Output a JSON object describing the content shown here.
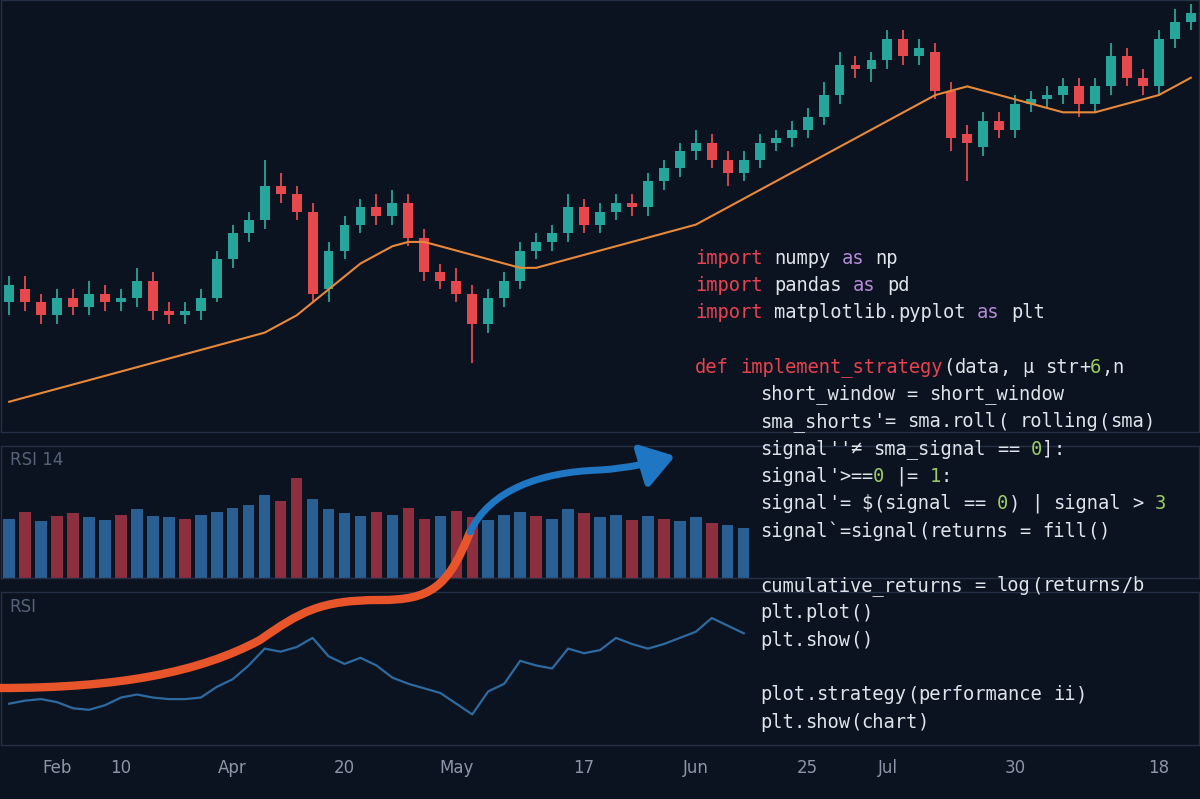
{
  "chart_data": [
    {
      "type": "candlestick",
      "categories": [
        null,
        null,
        null,
        null,
        null,
        null,
        null,
        null,
        null,
        null,
        null,
        null,
        null,
        null,
        null,
        null,
        null,
        null,
        null,
        null,
        null,
        null,
        null,
        null,
        null,
        null,
        null,
        null,
        null,
        null,
        null,
        null,
        null,
        null,
        null,
        null,
        null,
        null,
        null,
        null,
        null,
        null,
        null,
        null,
        null,
        null,
        null,
        null,
        null,
        null,
        null,
        null,
        null,
        null,
        null,
        null,
        null,
        null,
        null,
        null,
        null,
        null,
        null,
        null,
        null,
        null,
        null,
        null,
        null,
        null,
        null,
        null,
        null,
        null,
        null
      ],
      "open": [
        30,
        33,
        30,
        27,
        31,
        29,
        32,
        30,
        31,
        35,
        28,
        27,
        28,
        31,
        40,
        46,
        49,
        57,
        55,
        51,
        33,
        42,
        48,
        52,
        50,
        53,
        45,
        37,
        35,
        32,
        25,
        31,
        35,
        42,
        44,
        46,
        52,
        48,
        51,
        53,
        52,
        58,
        61,
        65,
        67,
        63,
        60,
        63,
        67,
        68,
        70,
        73,
        78,
        85,
        84,
        86,
        91,
        87,
        88,
        79,
        69,
        66,
        72,
        70,
        76,
        77,
        78,
        80,
        76,
        80,
        87,
        82,
        80,
        91,
        95
      ],
      "high": [
        36,
        36,
        32,
        33,
        33,
        35,
        34,
        33,
        38,
        37,
        30,
        30,
        33,
        42,
        48,
        51,
        63,
        60,
        57,
        53,
        44,
        50,
        54,
        55,
        56,
        55,
        47,
        39,
        38,
        34,
        33,
        37,
        44,
        46,
        48,
        55,
        54,
        53,
        55,
        55,
        60,
        63,
        67,
        70,
        69,
        65,
        65,
        69,
        70,
        72,
        75,
        81,
        88,
        87,
        88,
        93,
        93,
        91,
        90,
        81,
        71,
        74,
        74,
        78,
        79,
        80,
        82,
        82,
        82,
        90,
        89,
        84,
        93,
        98,
        99
      ],
      "low": [
        27,
        28,
        25,
        25,
        27,
        27,
        28,
        28,
        29,
        26,
        25,
        25,
        26,
        30,
        38,
        44,
        47,
        53,
        49,
        30,
        30,
        40,
        46,
        48,
        48,
        43,
        35,
        33,
        30,
        16,
        23,
        29,
        33,
        40,
        42,
        44,
        46,
        46,
        49,
        50,
        50,
        56,
        59,
        63,
        61,
        57,
        58,
        61,
        65,
        66,
        68,
        71,
        76,
        82,
        81,
        84,
        85,
        85,
        77,
        65,
        58,
        64,
        68,
        68,
        74,
        75,
        76,
        73,
        74,
        78,
        80,
        78,
        78,
        89,
        93
      ],
      "close": [
        34,
        30,
        27,
        31,
        29,
        32,
        30,
        31,
        35,
        28,
        27,
        28,
        31,
        40,
        46,
        49,
        57,
        55,
        51,
        32,
        42,
        48,
        52,
        50,
        53,
        45,
        37,
        35,
        32,
        25,
        31,
        35,
        42,
        44,
        46,
        52,
        48,
        51,
        53,
        52,
        58,
        61,
        65,
        67,
        63,
        60,
        63,
        67,
        68,
        70,
        73,
        78,
        85,
        84,
        86,
        91,
        87,
        89,
        79,
        68,
        67,
        72,
        70,
        76,
        77,
        78,
        80,
        76,
        80,
        87,
        82,
        80,
        91,
        95,
        97
      ],
      "colors": [
        "#26a69a",
        "#e5484d",
        "#e5484d",
        "#26a69a",
        "#e5484d",
        "#26a69a",
        "#e5484d",
        "#26a69a",
        "#26a69a",
        "#e5484d",
        "#e5484d",
        "#26a69a",
        "#26a69a",
        "#26a69a",
        "#26a69a",
        "#26a69a",
        "#26a69a",
        "#e5484d",
        "#e5484d",
        "#e5484d",
        "#26a69a",
        "#26a69a",
        "#26a69a",
        "#e5484d",
        "#26a69a",
        "#e5484d",
        "#e5484d",
        "#e5484d",
        "#e5484d",
        "#e5484d",
        "#26a69a",
        "#26a69a",
        "#26a69a",
        "#26a69a",
        "#26a69a",
        "#26a69a",
        "#e5484d",
        "#26a69a",
        "#26a69a",
        "#e5484d",
        "#26a69a",
        "#26a69a",
        "#26a69a",
        "#26a69a",
        "#e5484d",
        "#e5484d",
        "#26a69a",
        "#26a69a",
        "#26a69a",
        "#26a69a",
        "#26a69a",
        "#26a69a",
        "#26a69a",
        "#e5484d",
        "#26a69a",
        "#26a69a",
        "#e5484d",
        "#26a69a",
        "#e5484d",
        "#e5484d",
        "#e5484d",
        "#26a69a",
        "#e5484d",
        "#26a69a",
        "#26a69a",
        "#26a69a",
        "#26a69a",
        "#e5484d",
        "#26a69a",
        "#26a69a",
        "#e5484d",
        "#e5484d",
        "#26a69a",
        "#26a69a",
        "#26a69a"
      ],
      "series": [
        {
          "type": "line",
          "color": "#e8893a",
          "values": [
            7,
            8,
            9,
            10,
            11,
            12,
            13,
            14,
            15,
            16,
            17,
            18,
            19,
            20,
            21,
            22,
            23,
            25,
            27,
            30,
            33,
            36,
            39,
            41,
            43,
            44,
            44,
            43,
            42,
            41,
            40,
            39,
            38,
            38,
            39,
            40,
            41,
            42,
            43,
            44,
            45,
            46,
            47,
            48,
            50,
            52,
            54,
            56,
            58,
            60,
            62,
            64,
            66,
            68,
            70,
            72,
            74,
            76,
            78,
            79,
            80,
            79,
            78,
            77,
            76,
            75,
            74,
            74,
            74,
            75,
            76,
            77,
            78,
            80,
            82
          ]
        }
      ],
      "ylim": [
        0,
        100
      ],
      "tick_labels": false,
      "annotations": [
        [
          "import numpy as np",
          "import pandas as pd",
          "import matplotlib.pyplot as plt"
        ],
        [
          "def implement_strategy(data, μ str+6,n",
          "short_window = short_window",
          "sma_shorts'= sma.roll( rolling(sma)",
          "signal''≠ sma_signal == 0]:",
          "signal'>==0 |= 1:",
          "signal'= $(signal == 0) | signal > 3",
          "signal`=signal(returns = fill()"
        ],
        [
          "cumulative_returns = log(returns/b",
          "plt.plot()",
          "plt.show()"
        ],
        [
          "plot.strategy(performance ii)",
          "plt.show(chart)"
        ]
      ]
    },
    {
      "type": "bar",
      "title": "RSI 14",
      "categories": [
        null,
        null,
        null,
        null,
        null,
        null,
        null,
        null,
        null,
        null,
        null,
        null,
        null,
        null,
        null,
        null,
        null,
        null,
        null,
        null,
        null,
        null,
        null,
        null,
        null,
        null,
        null,
        null,
        null,
        null,
        null,
        null,
        null,
        null,
        null,
        null,
        null,
        null,
        null,
        null,
        null,
        null,
        null,
        null,
        null,
        null,
        null,
        null,
        null,
        null,
        null,
        null,
        null,
        null,
        null,
        null,
        null,
        null,
        null,
        null,
        null,
        null,
        null,
        null,
        null,
        null,
        null,
        null,
        null,
        null,
        null,
        null,
        null,
        null,
        null
      ],
      "values": [
        45,
        50,
        43,
        47,
        49,
        46,
        44,
        48,
        52,
        47,
        46,
        45,
        48,
        50,
        53,
        55,
        63,
        58,
        76,
        60,
        52,
        49,
        47,
        50,
        48,
        53,
        45,
        47,
        51,
        46,
        44,
        48,
        50,
        47,
        45,
        52,
        49,
        46,
        48,
        44,
        47,
        45,
        43,
        46,
        42,
        40,
        38,
        null,
        null,
        null,
        null,
        null,
        null,
        null,
        null,
        null,
        null,
        null,
        null,
        null,
        null,
        null,
        null,
        null,
        null,
        null,
        null,
        null,
        null,
        null,
        null,
        null,
        null,
        null,
        null
      ],
      "colors": [
        "#2a5f94",
        "#8e2f3f",
        "#2a5f94",
        "#8e2f3f",
        "#8e2f3f",
        "#2a5f94",
        "#2a5f94",
        "#8e2f3f",
        "#2a5f94",
        "#2a5f94",
        "#2a5f94",
        "#8e2f3f",
        "#2a5f94",
        "#2a5f94",
        "#2a5f94",
        "#2a5f94",
        "#2a5f94",
        "#8e2f3f",
        "#8e2f3f",
        "#2a5f94",
        "#2a5f94",
        "#2a5f94",
        "#2a5f94",
        "#8e2f3f",
        "#2a5f94",
        "#8e2f3f",
        "#8e2f3f",
        "#2a5f94",
        "#8e2f3f",
        "#8e2f3f",
        "#2a5f94",
        "#2a5f94",
        "#2a5f94",
        "#8e2f3f",
        "#2a5f94",
        "#2a5f94",
        "#8e2f3f",
        "#2a5f94",
        "#2a5f94",
        "#8e2f3f",
        "#2a5f94",
        "#8e2f3f",
        "#2a5f94",
        "#2a5f94",
        "#8e2f3f",
        "#2a5f94",
        "#2a5f94",
        null,
        null,
        null,
        null,
        null,
        null,
        null,
        null,
        null,
        null,
        null,
        null,
        null,
        null,
        null,
        null,
        null,
        null,
        null,
        null,
        null,
        null,
        null,
        null,
        null,
        null,
        null,
        null
      ],
      "ylim": [
        0,
        100
      ],
      "tick_labels": false
    },
    {
      "type": "line",
      "title": "RSI",
      "categories": [
        null,
        null,
        null,
        "Feb",
        null,
        null,
        null,
        "10",
        null,
        null,
        null,
        null,
        null,
        null,
        "Apr",
        null,
        null,
        null,
        null,
        null,
        null,
        "20",
        null,
        null,
        null,
        null,
        null,
        null,
        "May",
        null,
        null,
        null,
        null,
        null,
        null,
        null,
        "17",
        null,
        null,
        null,
        null,
        null,
        null,
        "Jun",
        null,
        null,
        null,
        null,
        null,
        null,
        "25",
        null,
        null,
        null,
        null,
        "Jul",
        null,
        null,
        null,
        null,
        null,
        null,
        null,
        "30",
        null,
        null,
        null,
        null,
        null,
        null,
        null,
        null,
        "18",
        null,
        null
      ],
      "values": [
        27,
        29,
        30,
        28,
        24,
        23,
        26,
        31,
        33,
        31,
        30,
        30,
        31,
        38,
        43,
        52,
        63,
        61,
        64,
        70,
        58,
        53,
        57,
        52,
        44,
        40,
        37,
        34,
        27,
        20,
        35,
        40,
        55,
        52,
        50,
        63,
        60,
        62,
        70,
        66,
        63,
        66,
        70,
        74,
        83,
        78,
        73,
        null,
        null,
        null,
        null,
        null,
        null,
        null,
        null,
        null,
        null,
        null,
        null,
        null,
        null,
        null,
        null,
        null,
        null,
        null,
        null,
        null,
        null,
        null,
        null,
        null,
        null,
        null,
        null
      ],
      "color": "#2d6aa0",
      "ylim": [
        0,
        100
      ],
      "tick_labels": "x"
    }
  ]
}
